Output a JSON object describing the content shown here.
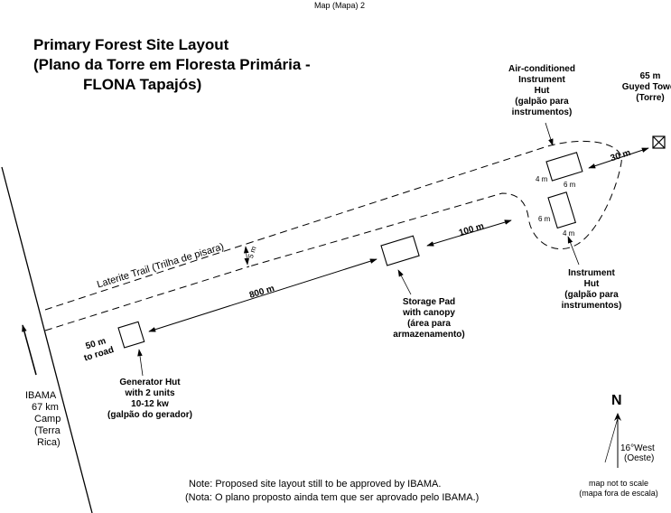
{
  "page_header": "Map (Mapa) 2",
  "title": {
    "line1": "Primary Forest Site Layout",
    "line2": "(Plano da Torre em Floresta Primária -",
    "line3": "FLONA Tapajós)"
  },
  "features": {
    "ac_hut": {
      "line1": "Air-conditioned",
      "line2": "Instrument",
      "line3": "Hut",
      "line4": "(galpão para",
      "line5": "instrumentos)",
      "dim_long": "6 m",
      "dim_short": "4 m"
    },
    "tower": {
      "line1": "65 m",
      "line2": "Guyed Tower",
      "line3": "(Torre)"
    },
    "instrument_hut": {
      "line1": "Instrument",
      "line2": "Hut",
      "line3": "(galpão para",
      "line4": "instrumentos)",
      "dim_long": "6 m",
      "dim_short": "4 m"
    },
    "storage_pad": {
      "line1": "Storage Pad",
      "line2": "with canopy",
      "line3": "(área para",
      "line4": "armazenamento)"
    },
    "generator_hut": {
      "line1": "Generator Hut",
      "line2": "with 2 units",
      "line3": "10-12 kw",
      "line4": "(galpão do gerador)"
    },
    "trail": {
      "label": "Laterite Trail (Trilha de pisara)",
      "width": "5 m"
    }
  },
  "distances": {
    "tower_to_hut": "30 m",
    "storage_to_huts": "100 m",
    "generator_to_storage": "800 m",
    "to_road_line1": "50 m",
    "to_road_line2": "to road"
  },
  "ibama_camp": {
    "line1": "IBAMA",
    "line2": "67 km",
    "line3": "Camp",
    "line4": "(Terra",
    "line5": "Rica)"
  },
  "north": {
    "letter": "N",
    "declination_value": "16°",
    "declination_line1": "West",
    "declination_line2": "(Oeste)"
  },
  "scale_note": {
    "line1": "map not to scale",
    "line2": "(mapa fora de escala)"
  },
  "approval_note": {
    "line1": "Note: Proposed site layout still to be approved by IBAMA.",
    "line2": "(Nota: O plano proposto ainda tem que ser aprovado pelo IBAMA.)"
  },
  "colors": {
    "ink": "#000000",
    "paper": "#ffffff"
  }
}
